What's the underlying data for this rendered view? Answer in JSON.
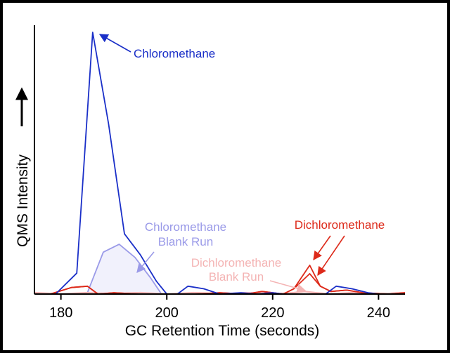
{
  "chart_data": {
    "type": "line",
    "title": "",
    "xlabel": "GC Retention Time (seconds)",
    "ylabel": "QMS Intensity",
    "xlim": [
      175,
      245
    ],
    "ylim": [
      0,
      100
    ],
    "xticks": [
      180,
      200,
      220,
      240
    ],
    "x_tick_labels": [
      "180",
      "200",
      "220",
      "240"
    ],
    "grid": false,
    "series": [
      {
        "name": "Chloromethane",
        "color": "#1a2fc8",
        "x": [
          179,
          183,
          186,
          189,
          192,
          195,
          198,
          200,
          202,
          204,
          207,
          210,
          214,
          217,
          220,
          222,
          225,
          227,
          230,
          232,
          235,
          238,
          240
        ],
        "y": [
          0,
          8,
          100,
          65,
          23,
          15,
          5,
          0,
          0,
          3,
          2,
          0,
          0.5,
          0,
          0.5,
          0,
          0,
          0,
          0,
          3,
          2,
          0.5,
          0
        ]
      },
      {
        "name": "Chloromethane Blank Run",
        "color": "#9a9ae8",
        "fill": "#f1f1fc",
        "x": [
          175,
          180,
          185,
          188,
          191,
          194,
          197,
          199,
          201
        ],
        "y": [
          0,
          0,
          0.5,
          16,
          19,
          14,
          6,
          0,
          0
        ]
      },
      {
        "name": "Dichloromethane",
        "color": "#dd2a1a",
        "x": [
          178,
          182,
          185,
          187,
          190,
          195,
          200,
          205,
          210,
          215,
          218,
          222,
          224,
          227,
          229,
          231,
          234,
          237,
          242,
          245
        ],
        "y": [
          0,
          2.5,
          3,
          0,
          0.5,
          0,
          0,
          0,
          0.5,
          0,
          1,
          0,
          2,
          11,
          3,
          1,
          1.5,
          0.5,
          0,
          0.5
        ]
      },
      {
        "name": "Dichloromethane Blank Run",
        "color": "#f4b4b4",
        "x": [
          175,
          180,
          185,
          190,
          195,
          200,
          205,
          210,
          215,
          220,
          224,
          226,
          228,
          231,
          235,
          240,
          245
        ],
        "y": [
          0.5,
          0,
          0.5,
          0,
          0.5,
          0,
          0.5,
          0,
          0.5,
          0,
          0.5,
          1,
          0.5,
          0,
          0.5,
          0,
          0.5
        ]
      }
    ],
    "annotations": [
      {
        "text_lines": [
          "Chloromethane"
        ],
        "color": "#1a2fc8"
      },
      {
        "text_lines": [
          "Chloromethane",
          "Blank Run"
        ],
        "color": "#9a9ae8"
      },
      {
        "text_lines": [
          "Dichloromethane"
        ],
        "color": "#dd2a1a"
      },
      {
        "text_lines": [
          "Dichloromethane",
          "Blank Run"
        ],
        "color": "#f4b4b4"
      }
    ]
  }
}
